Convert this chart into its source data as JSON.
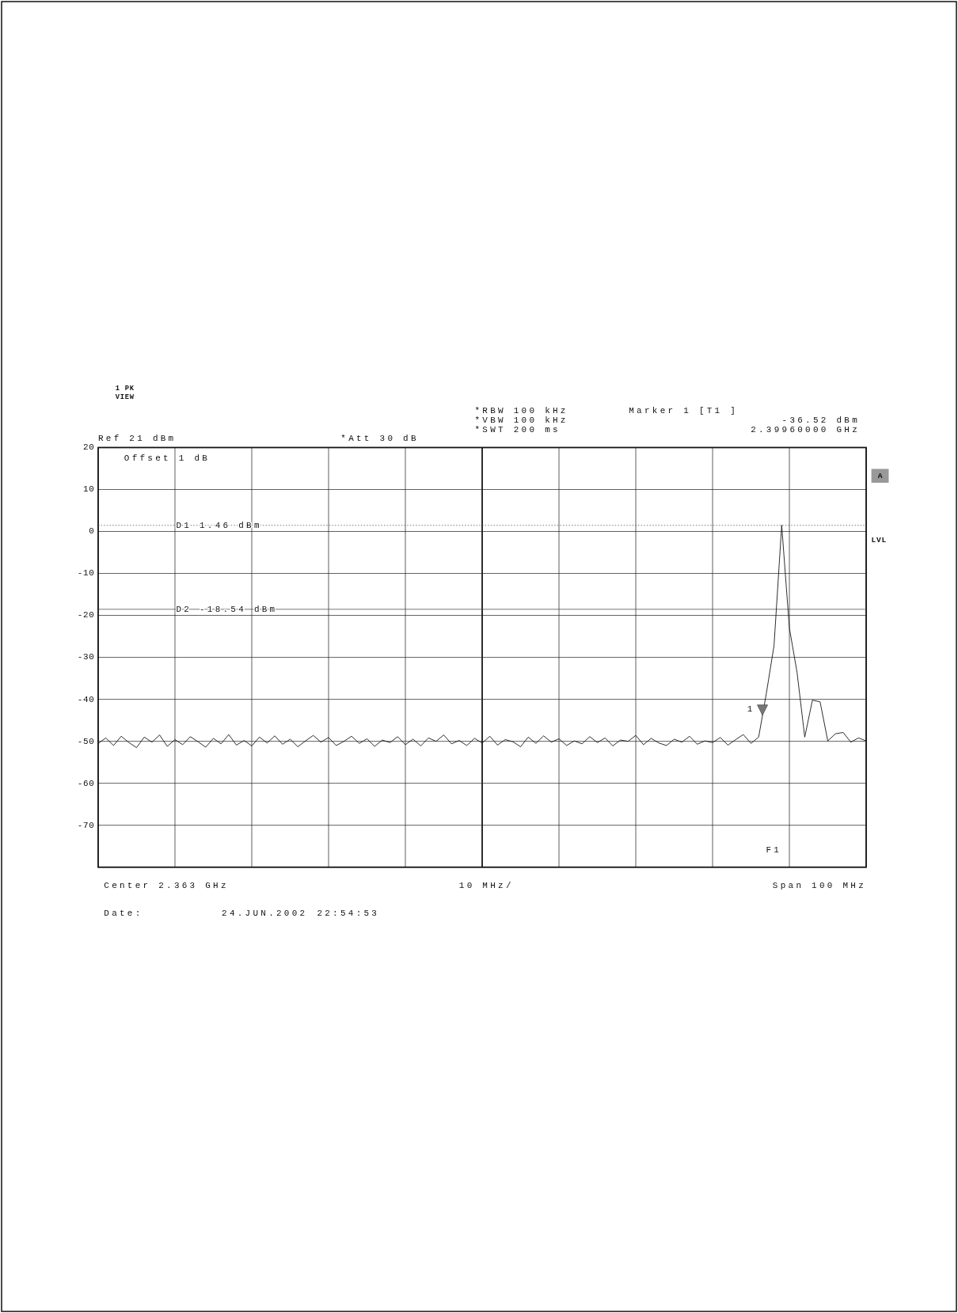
{
  "chart_data": {
    "type": "line",
    "annotations": [
      "Ref 21 dBm",
      "Offset 1 dB",
      "*Att 30 dB",
      "*RBW 100 kHz",
      "*VBW 100 kHz",
      "*SWT 200 ms",
      "Marker 1 [T1 ]",
      "-36.52 dBm",
      "2.39960000 GHz",
      "LVL",
      "A",
      "1 PK",
      "VIEW",
      "Center 2.363 GHz",
      "10 MHz/",
      "Span 100 MHz",
      "Date:",
      "24.JUN.2002",
      "22:54:53",
      "1",
      "F1"
    ],
    "categories": [
      null,
      null,
      null,
      null,
      null,
      null,
      null,
      null,
      null,
      null,
      null,
      null,
      null,
      null,
      null,
      null,
      null,
      null,
      null,
      null,
      null,
      null,
      null,
      null,
      null,
      null,
      null,
      null,
      null,
      null,
      null,
      null,
      null,
      null,
      null,
      null,
      null,
      null,
      null,
      null,
      null,
      null,
      null,
      null,
      null,
      null,
      null,
      null,
      null,
      null,
      null,
      null,
      null,
      null,
      null,
      null,
      null,
      null,
      null,
      null,
      null,
      null,
      null,
      null,
      null,
      null,
      null,
      null,
      null,
      null,
      null,
      null,
      null,
      null,
      null,
      null,
      null,
      null,
      null,
      null,
      null,
      null,
      null,
      null,
      null,
      null,
      null,
      null,
      null,
      null,
      null,
      null,
      null,
      null,
      null,
      null,
      null,
      null,
      null,
      null,
      null
    ],
    "ylim": [
      -80,
      20
    ],
    "yticks": [
      20,
      10,
      0,
      -10,
      -20,
      -30,
      -40,
      -50,
      -60,
      -70,
      {
        "value": -80,
        "label": null
      }
    ],
    "tick_labels": "y",
    "grid": true,
    "ref_lines": [
      {
        "axis": "y",
        "value": 1.46,
        "label": "D1 1.46 dBm",
        "line_style": "dotted"
      },
      {
        "axis": "y",
        "value": -18.54,
        "label": "D2 -18.54 dBm",
        "line_style": "solid"
      }
    ],
    "series": [
      {
        "color": "#111111",
        "marker": "none",
        "line_style": "solid",
        "values": [
          -50.5,
          -49.2,
          -51.0,
          -48.8,
          -50.3,
          -51.5,
          -49.0,
          -50.2,
          -48.5,
          -51.2,
          -49.6,
          -50.8,
          -48.9,
          -50.1,
          -51.4,
          -49.3,
          -50.6,
          -48.4,
          -50.9,
          -49.8,
          -51.1,
          -49.0,
          -50.4,
          -48.7,
          -50.7,
          -49.5,
          -51.3,
          -49.9,
          -48.6,
          -50.2,
          -49.1,
          -51.0,
          -50.0,
          -48.8,
          -50.5,
          -49.4,
          -51.2,
          -49.7,
          -50.3,
          -48.9,
          -50.8,
          -49.5,
          -51.1,
          -49.2,
          -50.0,
          -48.5,
          -50.6,
          -49.8,
          -51.0,
          -49.3,
          -50.4,
          -48.8,
          -50.9,
          -49.6,
          -50.1,
          -51.3,
          -49.0,
          -50.5,
          -48.7,
          -50.2,
          -49.4,
          -51.0,
          -49.9,
          -50.6,
          -48.9,
          -50.3,
          -49.2,
          -51.1,
          -49.7,
          -50.0,
          -48.6,
          -50.8,
          -49.3,
          -50.4,
          -51.0,
          -49.5,
          -50.2,
          -48.8,
          -50.7,
          -49.9,
          -50.3,
          -49.1,
          -50.9,
          -49.6,
          -48.4,
          -50.5,
          -49.0,
          -38.6,
          -27.2,
          1.5,
          -23.0,
          -33.6,
          -49.0,
          -40.2,
          -40.6,
          -49.9,
          -48.2,
          -47.9,
          -50.2,
          -49.2,
          -49.9
        ]
      }
    ]
  }
}
